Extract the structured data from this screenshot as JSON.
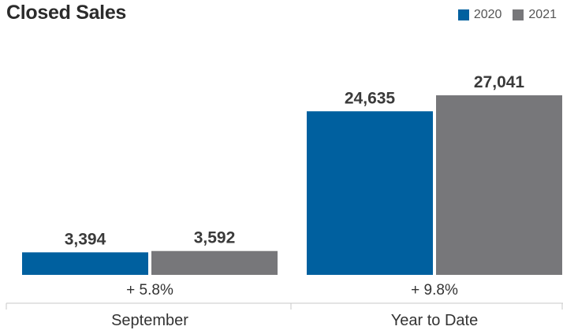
{
  "chart_data": {
    "type": "bar",
    "title": "Closed Sales",
    "categories": [
      "September",
      "Year to Date"
    ],
    "series": [
      {
        "name": "2020",
        "color": "#00609f",
        "values": [
          3394,
          24635
        ],
        "labels": [
          "3,394",
          "24,635"
        ]
      },
      {
        "name": "2021",
        "color": "#77777a",
        "values": [
          3592,
          27041
        ],
        "labels": [
          "3,592",
          "27,041"
        ]
      }
    ],
    "changes": [
      "+ 5.8%",
      "+ 9.8%"
    ],
    "legend_position": "top-right",
    "grid": false
  }
}
